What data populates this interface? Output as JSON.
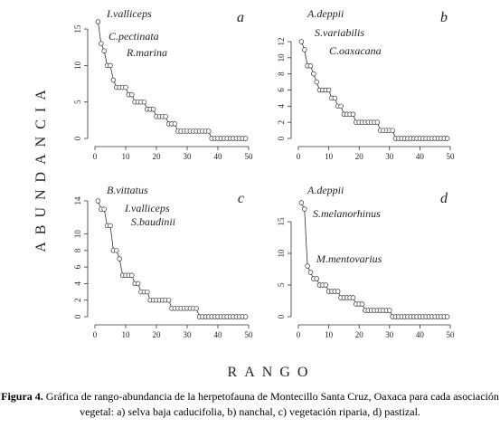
{
  "figure": {
    "y_label": "ABUNDANCIA",
    "x_label": "RANGO",
    "caption": {
      "label": "Figura 4.",
      "text": "Gráfica de rango-abundancia de la herpetofauna de Montecillo Santa Cruz, Oaxaca para cada asociación vegetal: a) selva baja caducifolia, b) nanchal, c) vegetación riparia, d) pastizal."
    }
  },
  "chart_data": [
    {
      "type": "line",
      "title": "a",
      "annotations": [
        "I.valliceps",
        "C.pectinata",
        "R.marina"
      ],
      "x": [
        1,
        2,
        3,
        4,
        5,
        6,
        7,
        8,
        9,
        10,
        11,
        12,
        13,
        14,
        15,
        16,
        17,
        18,
        19,
        20,
        21,
        22,
        23,
        24,
        25,
        26,
        27,
        28,
        29,
        30,
        31,
        32,
        33,
        34,
        35,
        36,
        37,
        38,
        39,
        40,
        41,
        42,
        43,
        44,
        45,
        46,
        47,
        48,
        49
      ],
      "values": [
        16,
        13,
        12,
        10,
        10,
        8,
        7,
        7,
        7,
        7,
        6,
        6,
        5,
        5,
        5,
        5,
        4,
        4,
        4,
        3,
        3,
        3,
        3,
        2,
        2,
        2,
        1,
        1,
        1,
        1,
        1,
        1,
        1,
        1,
        1,
        1,
        1,
        0,
        0,
        0,
        0,
        0,
        0,
        0,
        0,
        0,
        0,
        0,
        0
      ],
      "xlim": [
        0,
        50
      ],
      "xticks": [
        0,
        10,
        20,
        30,
        40,
        50
      ],
      "ylim": [
        0,
        16
      ],
      "yticks": [
        0,
        5,
        10,
        15
      ]
    },
    {
      "type": "line",
      "title": "b",
      "annotations": [
        "A.deppii",
        "S.variabilis",
        "C.oaxacana"
      ],
      "x": [
        1,
        2,
        3,
        4,
        5,
        6,
        7,
        8,
        9,
        10,
        11,
        12,
        13,
        14,
        15,
        16,
        17,
        18,
        19,
        20,
        21,
        22,
        23,
        24,
        25,
        26,
        27,
        28,
        29,
        30,
        31,
        32,
        33,
        34,
        35,
        36,
        37,
        38,
        39,
        40,
        41,
        42,
        43,
        44,
        45,
        46,
        47,
        48,
        49
      ],
      "values": [
        12,
        11,
        9,
        9,
        8,
        7,
        6,
        6,
        6,
        6,
        5,
        5,
        4,
        4,
        3,
        3,
        3,
        3,
        2,
        2,
        2,
        2,
        2,
        2,
        2,
        2,
        1,
        1,
        1,
        1,
        1,
        0,
        0,
        0,
        0,
        0,
        0,
        0,
        0,
        0,
        0,
        0,
        0,
        0,
        0,
        0,
        0,
        0,
        0
      ],
      "xlim": [
        0,
        50
      ],
      "xticks": [
        0,
        10,
        20,
        30,
        40,
        50
      ],
      "ylim": [
        0,
        12
      ],
      "yticks": [
        0,
        2,
        4,
        6,
        8,
        10,
        12
      ]
    },
    {
      "type": "line",
      "title": "c",
      "annotations": [
        "B.vittatus",
        "I.valliceps",
        "S.baudinii"
      ],
      "x": [
        1,
        2,
        3,
        4,
        5,
        6,
        7,
        8,
        9,
        10,
        11,
        12,
        13,
        14,
        15,
        16,
        17,
        18,
        19,
        20,
        21,
        22,
        23,
        24,
        25,
        26,
        27,
        28,
        29,
        30,
        31,
        32,
        33,
        34,
        35,
        36,
        37,
        38,
        39,
        40,
        41,
        42,
        43,
        44,
        45,
        46,
        47,
        48,
        49
      ],
      "values": [
        14,
        13,
        13,
        11,
        11,
        8,
        8,
        7,
        5,
        5,
        5,
        5,
        4,
        4,
        3,
        3,
        3,
        2,
        2,
        2,
        2,
        2,
        2,
        2,
        1,
        1,
        1,
        1,
        1,
        1,
        1,
        1,
        1,
        0,
        0,
        0,
        0,
        0,
        0,
        0,
        0,
        0,
        0,
        0,
        0,
        0,
        0,
        0,
        0
      ],
      "xlim": [
        0,
        50
      ],
      "xticks": [
        0,
        10,
        20,
        30,
        40,
        50
      ],
      "ylim": [
        0,
        14
      ],
      "yticks": [
        0,
        2,
        4,
        6,
        8,
        10,
        14
      ]
    },
    {
      "type": "line",
      "title": "d",
      "annotations": [
        "A.deppii",
        "S.melanorhinus",
        "M.mentovarius"
      ],
      "x": [
        1,
        2,
        3,
        4,
        5,
        6,
        7,
        8,
        9,
        10,
        11,
        12,
        13,
        14,
        15,
        16,
        17,
        18,
        19,
        20,
        21,
        22,
        23,
        24,
        25,
        26,
        27,
        28,
        29,
        30,
        31,
        32,
        33,
        34,
        35,
        36,
        37,
        38,
        39,
        40,
        41,
        42,
        43,
        44,
        45,
        46,
        47,
        48,
        49
      ],
      "values": [
        18,
        17,
        8,
        7,
        6,
        6,
        5,
        5,
        5,
        4,
        4,
        4,
        4,
        3,
        3,
        3,
        3,
        3,
        2,
        2,
        2,
        1,
        1,
        1,
        1,
        1,
        1,
        1,
        1,
        1,
        0,
        0,
        0,
        0,
        0,
        0,
        0,
        0,
        0,
        0,
        0,
        0,
        0,
        0,
        0,
        0,
        0,
        0,
        0
      ],
      "xlim": [
        0,
        50
      ],
      "xticks": [
        0,
        10,
        20,
        30,
        40,
        50
      ],
      "ylim": [
        0,
        18
      ],
      "yticks": [
        0,
        5,
        10,
        15
      ]
    }
  ]
}
